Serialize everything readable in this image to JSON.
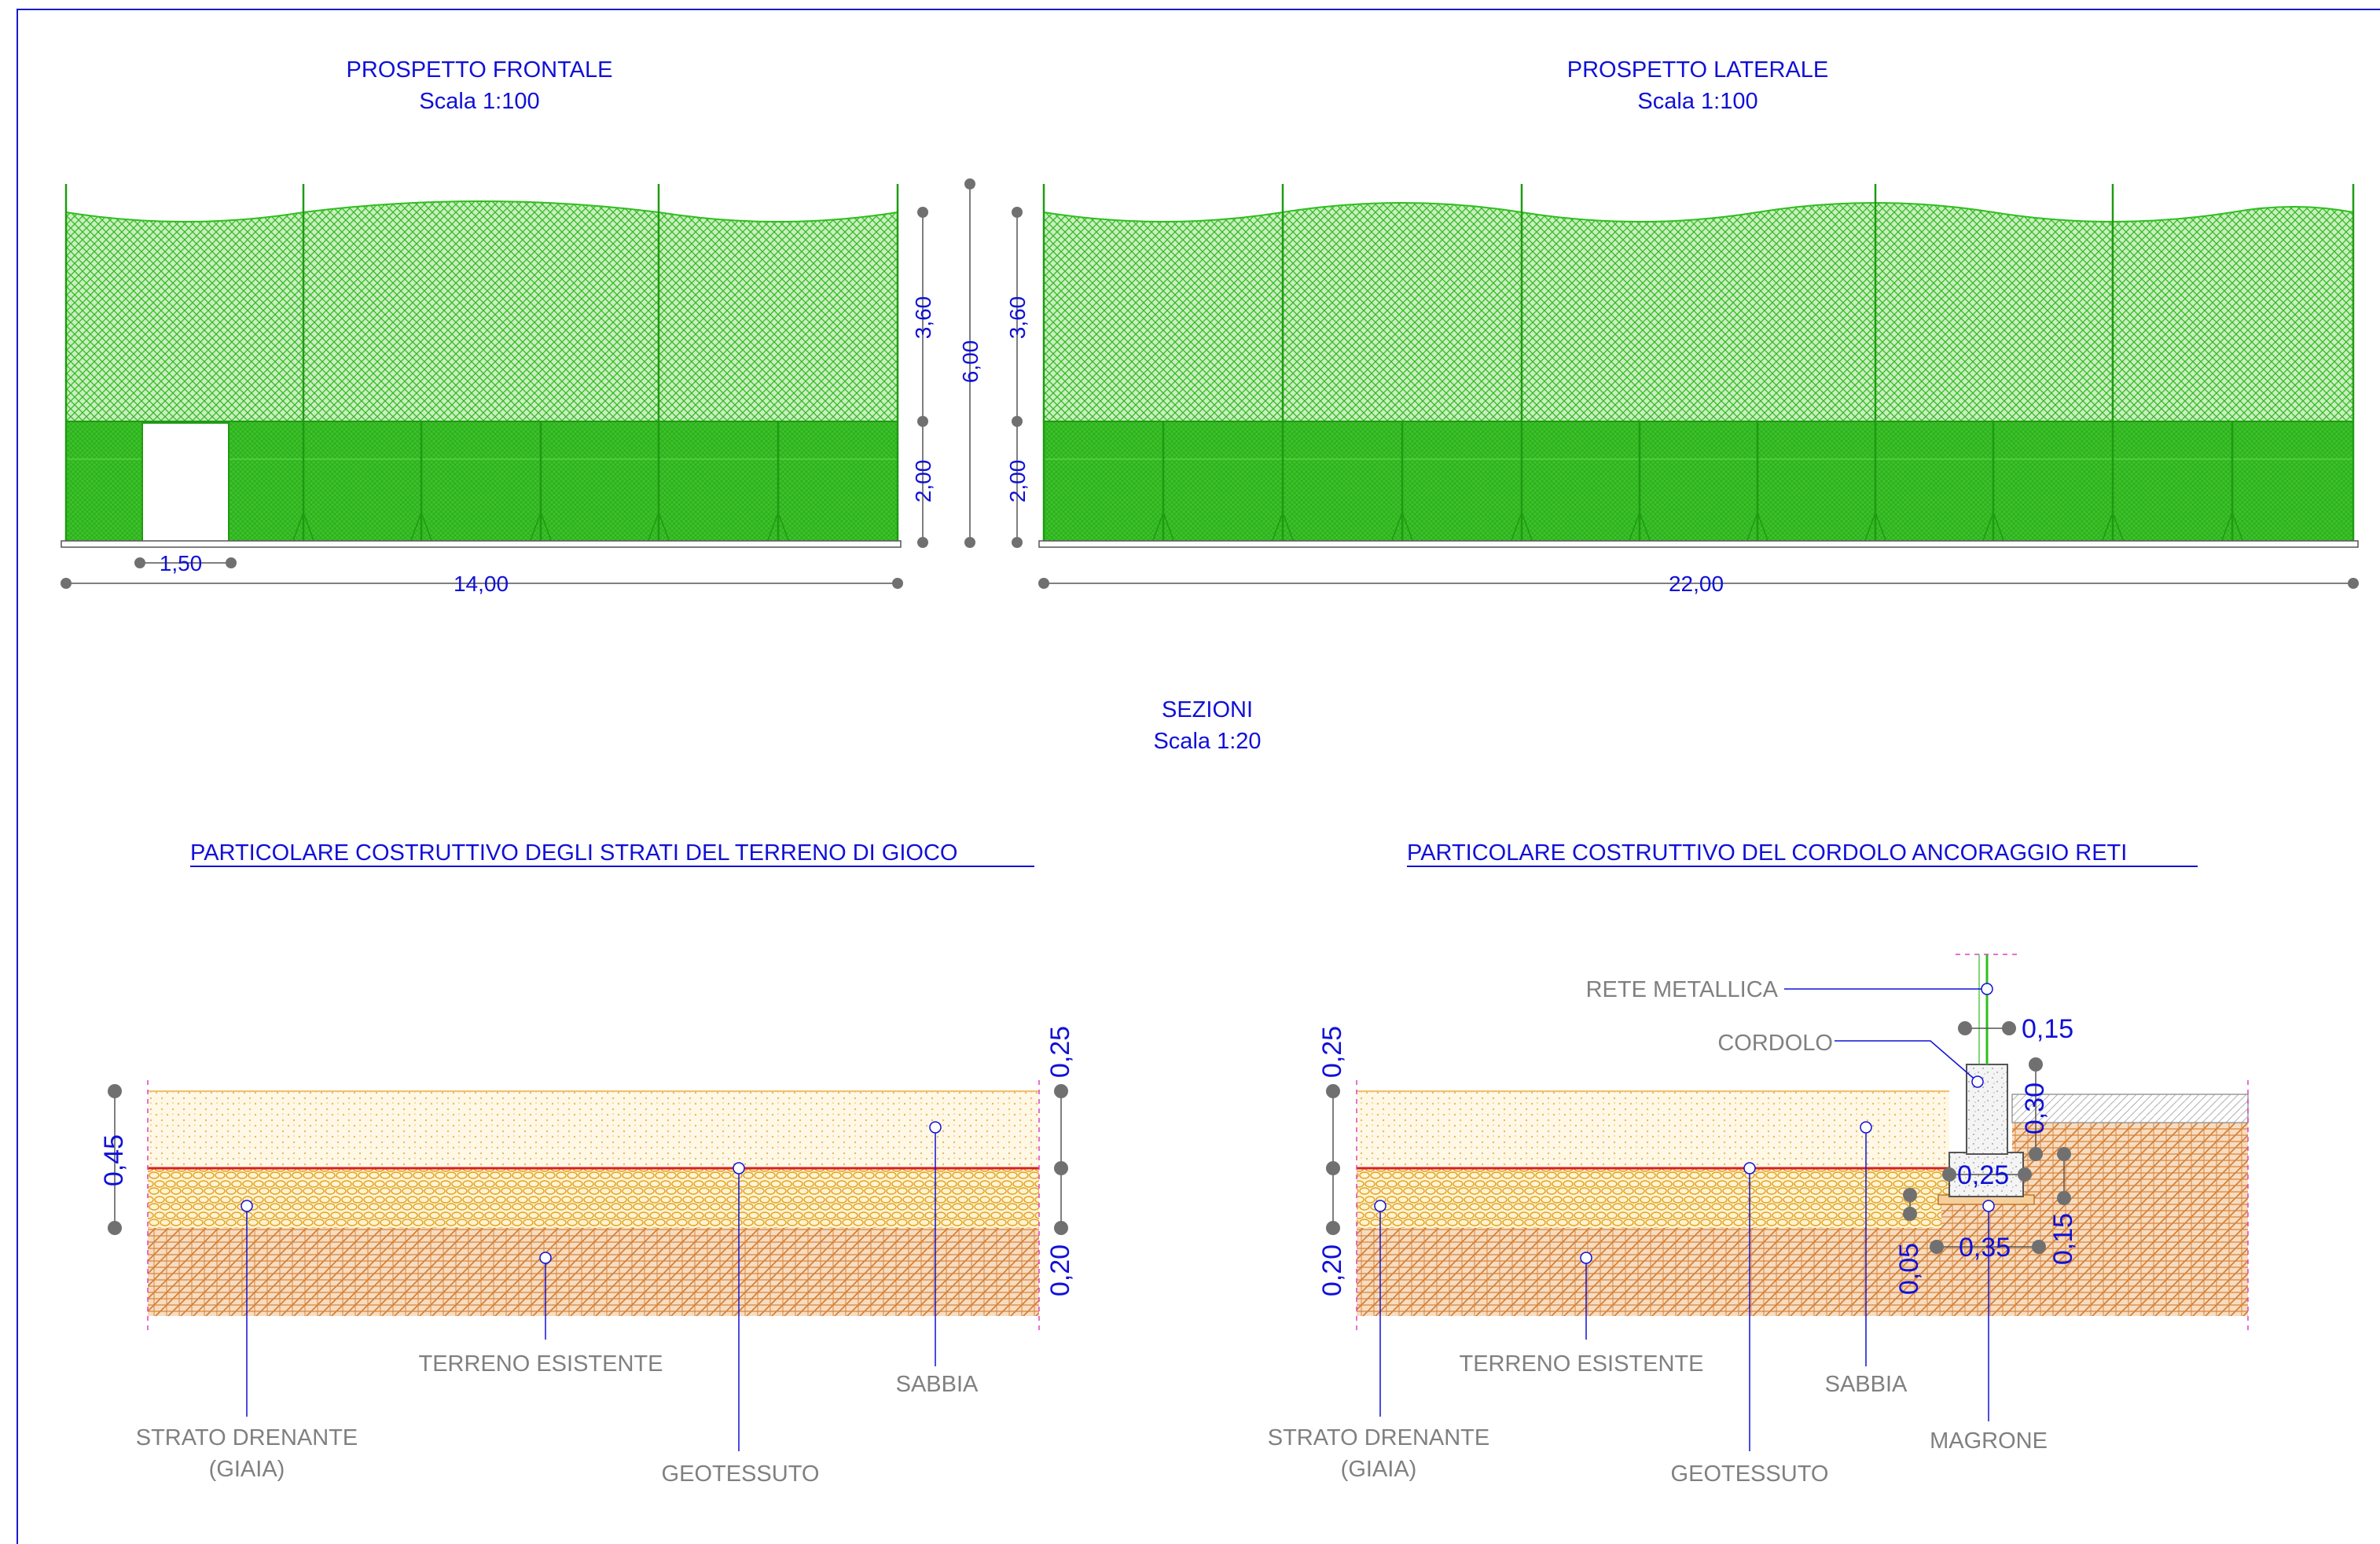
{
  "sheet": {
    "border_color": "#1a1ad0",
    "colors": {
      "net": "#2fbf1f",
      "net_dark": "#1f9a12",
      "sand": "#f2c46a",
      "gravel": "#e0a020",
      "soil": "#d8843a",
      "geotextile_line": "#d92020",
      "dim_dot": "#707070",
      "text_blue": "#1010d8",
      "text_grey": "#808080"
    }
  },
  "front_view": {
    "title": "PROSPETTO FRONTALE",
    "scale": "Scala 1:100",
    "dims": {
      "gate_width": "1,50",
      "total_width": "14,00",
      "upper_height": "3,60",
      "lower_height": "2,00",
      "total_height": "6,00"
    }
  },
  "side_view": {
    "title": "PROSPETTO LATERALE",
    "scale": "Scala 1:100",
    "dims": {
      "total_width": "22,00",
      "upper_height": "3,60",
      "lower_height": "2,00"
    }
  },
  "sections": {
    "title": "SEZIONI",
    "scale": "Scala 1:20"
  },
  "detail_left": {
    "title": "PARTICOLARE COSTRUTTIVO DEGLI STRATI DEL TERRENO DI GIOCO",
    "labels": {
      "existing_soil": "TERRENO ESISTENTE",
      "sand": "SABBIA",
      "drain_layer_1": "STRATO DRENANTE",
      "drain_layer_2": "(GIAIA)",
      "geotextile": "GEOTESSUTO"
    },
    "dims": {
      "total": "0,45",
      "sand": "0,25",
      "drain": "0,20"
    }
  },
  "detail_right": {
    "title": "PARTICOLARE COSTRUTTIVO DEL CORDOLO ANCORAGGIO RETI",
    "labels": {
      "metal_net": "RETE METALLICA",
      "curb": "CORDOLO",
      "existing_soil": "TERRENO ESISTENTE",
      "sand": "SABBIA",
      "lean_concrete": "MAGRONE",
      "drain_layer_1": "STRATO DRENANTE",
      "drain_layer_2": "(GIAIA)",
      "geotextile": "GEOTESSUTO"
    },
    "dims": {
      "sand": "0,25",
      "drain": "0,20",
      "curb_top": "0,15",
      "curb_height": "0,30",
      "curb_base": "0,25",
      "footing_width": "0,35",
      "footing_height": "0,15",
      "lean_thickness": "0,05"
    }
  }
}
